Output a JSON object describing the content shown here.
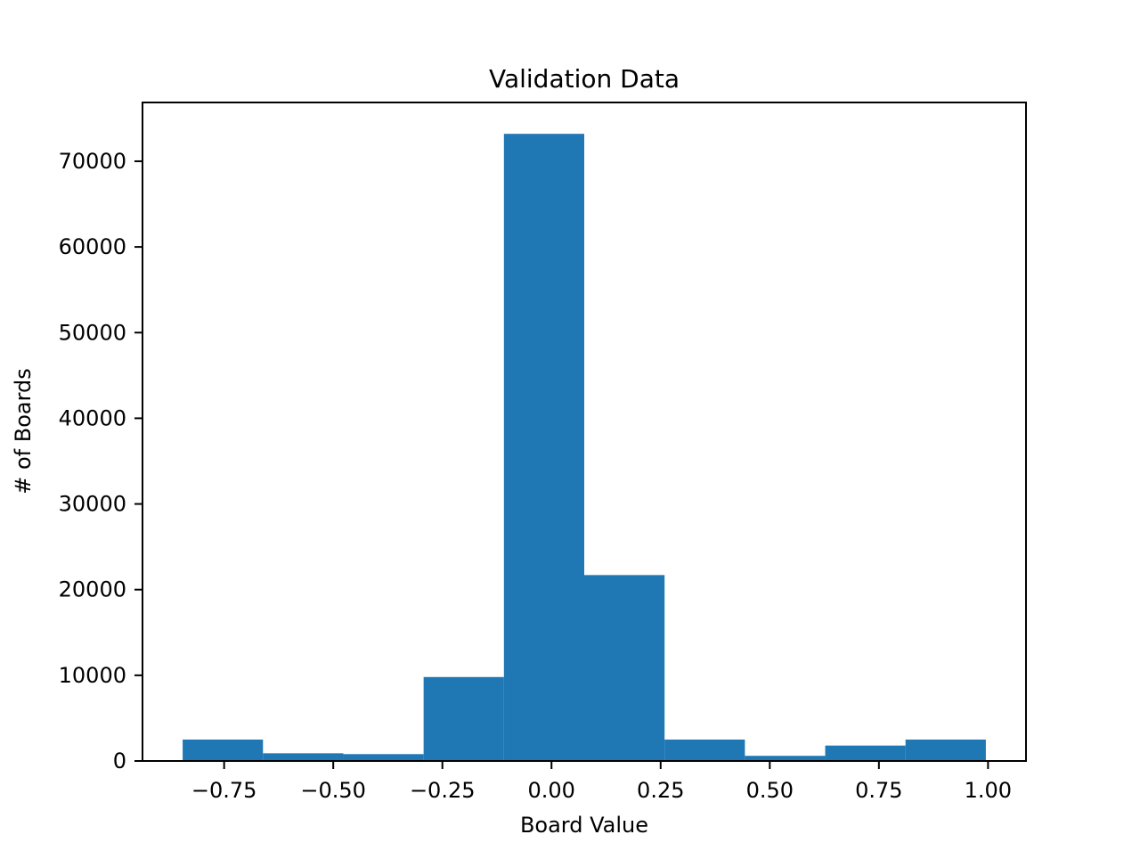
{
  "chart_data": {
    "type": "bar",
    "title": "Validation Data",
    "xlabel": "Board Value",
    "ylabel": "# of Boards",
    "bar_color": "#1f77b4",
    "bin_edges": [
      -0.845,
      -0.661,
      -0.477,
      -0.293,
      -0.109,
      0.075,
      0.259,
      0.443,
      0.627,
      0.811,
      0.995
    ],
    "values": [
      2500,
      900,
      800,
      9800,
      73200,
      21700,
      2500,
      600,
      1800,
      2500
    ],
    "xlim": [
      -0.937,
      1.087
    ],
    "ylim": [
      0,
      76860
    ],
    "x_ticks": [
      -0.75,
      -0.5,
      -0.25,
      0.0,
      0.25,
      0.5,
      0.75,
      1.0
    ],
    "x_tick_labels": [
      "−0.75",
      "−0.50",
      "−0.25",
      "0.00",
      "0.25",
      "0.50",
      "0.75",
      "1.00"
    ],
    "y_ticks": [
      0,
      10000,
      20000,
      30000,
      40000,
      50000,
      60000,
      70000
    ],
    "y_tick_labels": [
      "0",
      "10000",
      "20000",
      "30000",
      "40000",
      "50000",
      "60000",
      "70000"
    ],
    "grid": false,
    "legend": "none"
  }
}
